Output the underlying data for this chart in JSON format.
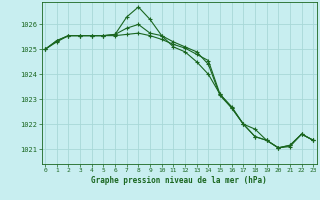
{
  "title": "Graphe pression niveau de la mer (hPa)",
  "background_color": "#c8eef0",
  "grid_color": "#a8d8d8",
  "line_color": "#1a6620",
  "marker_color": "#1a6620",
  "ylim": [
    1020.4,
    1026.9
  ],
  "yticks": [
    1021,
    1022,
    1023,
    1024,
    1025,
    1026
  ],
  "xlim": [
    -0.3,
    23.3
  ],
  "xticks": [
    0,
    1,
    2,
    3,
    4,
    5,
    6,
    7,
    8,
    9,
    10,
    11,
    12,
    13,
    14,
    15,
    16,
    17,
    18,
    19,
    20,
    21,
    22,
    23
  ],
  "series": [
    [
      1025.0,
      1025.3,
      1025.55,
      1025.55,
      1025.55,
      1025.55,
      1025.55,
      1025.6,
      1025.65,
      1025.55,
      1025.4,
      1025.2,
      1025.05,
      1024.8,
      1024.55,
      1023.2,
      1022.65,
      1022.0,
      1021.8,
      1021.35,
      1021.05,
      1021.1,
      1021.6,
      1021.35
    ],
    [
      1025.0,
      1025.35,
      1025.55,
      1025.55,
      1025.55,
      1025.55,
      1025.6,
      1026.3,
      1026.7,
      1026.2,
      1025.55,
      1025.1,
      1024.9,
      1024.5,
      1024.0,
      1023.2,
      1022.7,
      1022.0,
      1021.5,
      1021.35,
      1021.05,
      1021.15,
      1021.6,
      1021.35
    ],
    [
      1025.0,
      1025.35,
      1025.55,
      1025.55,
      1025.55,
      1025.55,
      1025.6,
      1025.85,
      1026.0,
      1025.65,
      1025.55,
      1025.3,
      1025.1,
      1024.9,
      1024.4,
      1023.15,
      1022.65,
      1022.0,
      1021.5,
      1021.35,
      1021.05,
      1021.15,
      1021.6,
      1021.35
    ]
  ]
}
